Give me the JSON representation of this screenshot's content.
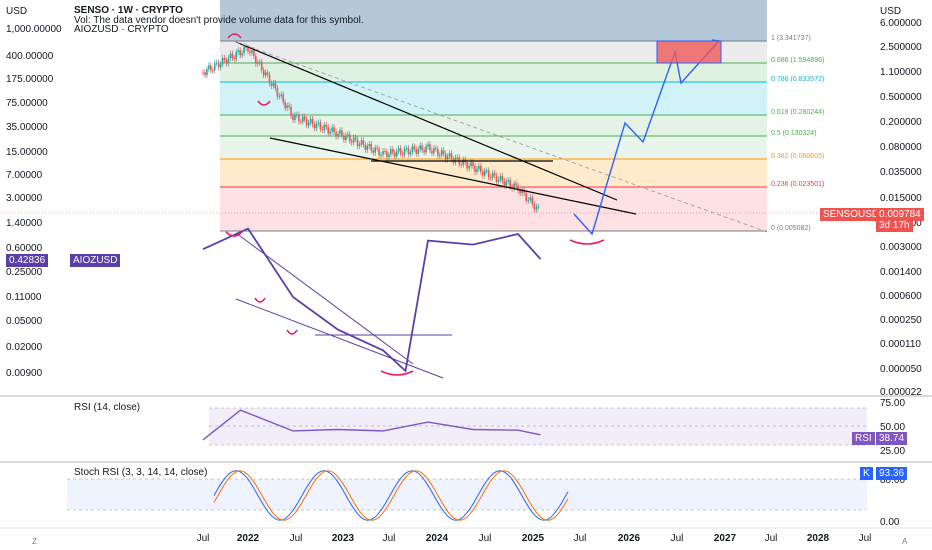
{
  "header": {
    "left_currency": "USD",
    "right_currency": "USD",
    "title": "SENSO · 1W · CRYPTO",
    "vol_note": "Vol: The data vendor doesn't provide volume data for this symbol.",
    "compare": "AIOZUSD · CRYPTO"
  },
  "left_axis": [
    "1,000.00000",
    "400.00000",
    "175.00000",
    "75.00000",
    "35.00000",
    "15.00000",
    "7.00000",
    "3.00000",
    "1.40000",
    "0.60000",
    "0.25000",
    "0.11000",
    "0.05000",
    "0.02000",
    "0.00900"
  ],
  "right_axis": [
    "6.000000",
    "2.500000",
    "1.100000",
    "0.500000",
    "0.200000",
    "0.080000",
    "0.035000",
    "0.015000",
    "0.006000",
    "0.003000",
    "0.001400",
    "0.000600",
    "0.000250",
    "0.000110",
    "0.000050",
    "0.000022"
  ],
  "dates": [
    "Jul",
    "2022",
    "Jul",
    "2023",
    "Jul",
    "2024",
    "Jul",
    "2025",
    "Jul",
    "2026",
    "Jul",
    "2027",
    "Jul",
    "2028",
    "Jul"
  ],
  "fib_levels": [
    {
      "label": "1 (3.341737)",
      "color": "#787b86"
    },
    {
      "label": "0.886 (1.594896)",
      "color": "#4caf50"
    },
    {
      "label": "0.786 (0.833572)",
      "color": "#00bcd4"
    },
    {
      "label": "0.618 (0.280244)",
      "color": "#4caf50"
    },
    {
      "label": "0.5 (0.130324)",
      "color": "#4caf50"
    },
    {
      "label": "0.382 (0.060605)",
      "color": "#ff9800"
    },
    {
      "label": "0.236 (0.023501)",
      "color": "#f23645"
    },
    {
      "label": "0 (0.005082)",
      "color": "#787b86"
    }
  ],
  "price_badge": {
    "symbol": "SENSOUSD",
    "price": "0.009784",
    "countdown": "3d 17h"
  },
  "aioz_badge": {
    "value": "0.42836",
    "symbol": "AIOZUSD"
  },
  "rsi": {
    "title": "RSI (14, close)",
    "ticks": [
      "75.00",
      "50.00",
      "25.00"
    ],
    "badge_label": "RSI",
    "badge_value": "38.74"
  },
  "stoch": {
    "title": "Stoch RSI (3, 3, 14, 14, close)",
    "ticks": [
      "80.00",
      "0.00"
    ],
    "badge_label": "K",
    "badge_value": "93.36"
  },
  "footer": {
    "left": "Z",
    "right": "A"
  },
  "colors": {
    "senso_up": "#26a69a",
    "senso_down": "#ef5350",
    "aioz_line": "#5b3fa8",
    "projection": "#2962ff",
    "rsi_line": "#7e57c2",
    "stoch_k": "#2962ff",
    "stoch_d": "#ff6d00",
    "target_box": "#f05a5a"
  },
  "chart_data": [
    {
      "type": "line",
      "name": "SENSOUSD",
      "y_scale": "log",
      "ylim": [
        2.2e-05,
        6.0
      ],
      "x": [
        "2021-07",
        "2022-01",
        "2022-07",
        "2023-01",
        "2023-07",
        "2024-01",
        "2024-07",
        "2025-01",
        "2025-04"
      ],
      "values": [
        1.1,
        2.5,
        0.25,
        0.14,
        0.07,
        0.085,
        0.045,
        0.022,
        0.0098
      ]
    },
    {
      "type": "line",
      "name": "AIOZUSD",
      "y_scale": "log",
      "x": [
        "2021-07",
        "2022-01",
        "2022-07",
        "2023-01",
        "2023-07",
        "2023-10",
        "2024-01",
        "2024-07",
        "2025-01",
        "2025-04"
      ],
      "values": [
        0.6,
        1.2,
        0.12,
        0.04,
        0.02,
        0.01,
        0.8,
        0.7,
        1.0,
        0.43
      ]
    },
    {
      "type": "line",
      "name": "RSI (14, close)",
      "ylim": [
        0,
        100
      ],
      "x": [
        "2021-07",
        "2021-12",
        "2022-07",
        "2023-01",
        "2023-07",
        "2024-01",
        "2024-07",
        "2025-01",
        "2025-04"
      ],
      "values": [
        32,
        72,
        44,
        46,
        44,
        56,
        46,
        45,
        38.74
      ]
    },
    {
      "type": "line",
      "name": "Stoch RSI (3, 3, 14, 14, close)",
      "ylim": [
        0,
        100
      ],
      "x": [
        "2021-07",
        "2022-01",
        "2022-07",
        "2023-01",
        "2023-07",
        "2024-01",
        "2024-07",
        "2025-01",
        "2025-04"
      ],
      "values": [
        50,
        95,
        5,
        95,
        5,
        95,
        10,
        90,
        93.36
      ]
    }
  ]
}
